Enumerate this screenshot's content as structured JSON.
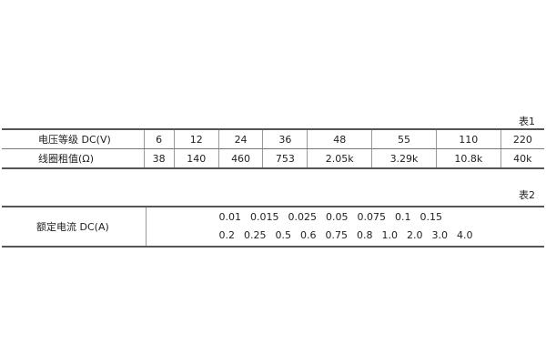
{
  "table1": {
    "caption": "表1",
    "rows": [
      {
        "label": "电压等级 DC(V)",
        "values": [
          "6",
          "12",
          "24",
          "36",
          "48",
          "55",
          "110",
          "220"
        ]
      },
      {
        "label": "线圈租值(Ω)",
        "values": [
          "38",
          "140",
          "460",
          "753",
          "2.05k",
          "3.29k",
          "10.8k",
          "40k"
        ]
      }
    ]
  },
  "table2": {
    "caption": "表2",
    "label": "额定电流 DC(A)",
    "line1": [
      "0.01",
      "0.015",
      "0.025",
      "0.05",
      "0.075",
      "0.1",
      "0.15"
    ],
    "line2": [
      "0.2",
      "0.25",
      "0.5",
      "0.6",
      "0.75",
      "0.8",
      "1.0",
      "2.0",
      "3.0",
      "4.0"
    ]
  }
}
